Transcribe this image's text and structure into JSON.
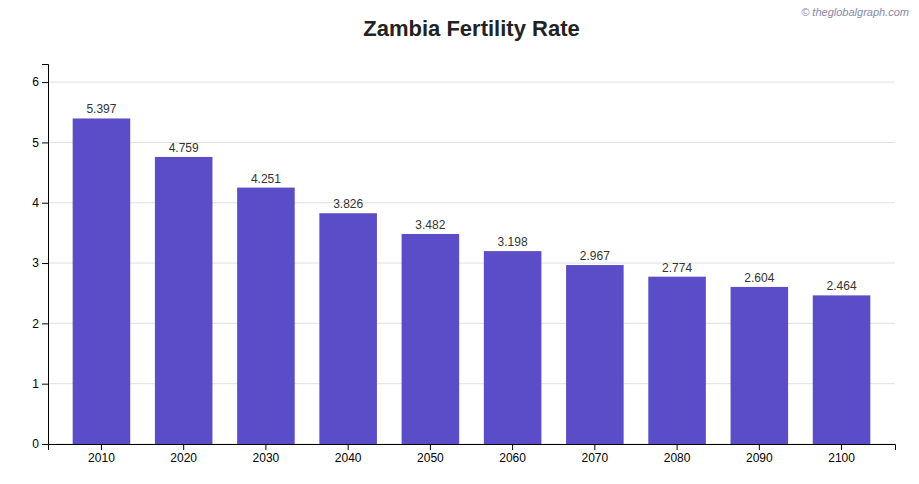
{
  "chart_data": {
    "type": "bar",
    "title": "Zambia Fertility Rate",
    "categories": [
      "2010",
      "2020",
      "2030",
      "2040",
      "2050",
      "2060",
      "2070",
      "2080",
      "2090",
      "2100"
    ],
    "values": [
      5.397,
      4.759,
      4.251,
      3.826,
      3.482,
      3.198,
      2.967,
      2.774,
      2.604,
      2.464
    ],
    "color": "#5b4cc8",
    "ylim": [
      0,
      6.3
    ],
    "yticks": [
      0,
      1,
      2,
      3,
      4,
      5,
      6
    ],
    "grid": true,
    "data_labels": true,
    "annotations": [
      "© theglobalgraph.com"
    ]
  }
}
